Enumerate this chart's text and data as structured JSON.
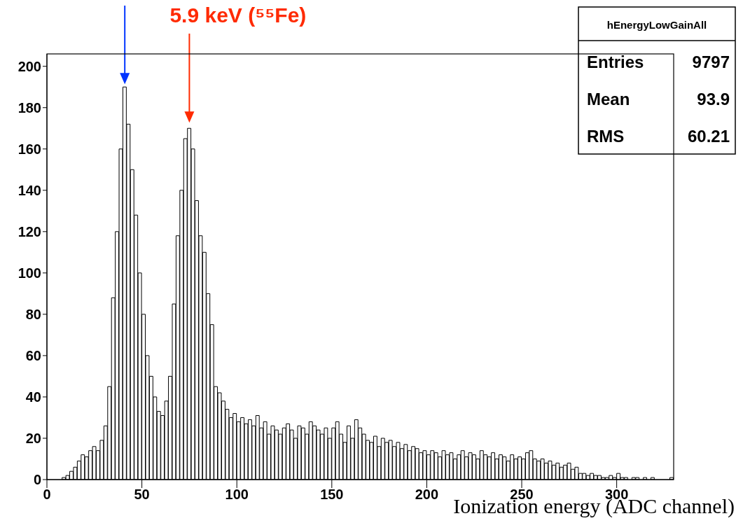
{
  "chart_data": {
    "type": "histogram",
    "xlabel": "Ionization energy (ADC  channel)",
    "bins": [
      0,
      2,
      4,
      6,
      8,
      10,
      12,
      14,
      16,
      18,
      20,
      22,
      24,
      26,
      28,
      30,
      32,
      34,
      36,
      38,
      40,
      42,
      44,
      46,
      48,
      50,
      52,
      54,
      56,
      58,
      60,
      62,
      64,
      66,
      68,
      70,
      72,
      74,
      76,
      78,
      80,
      82,
      84,
      86,
      88,
      90,
      92,
      94,
      96,
      98,
      100,
      102,
      104,
      106,
      108,
      110,
      112,
      114,
      116,
      118,
      120,
      122,
      124,
      126,
      128,
      130,
      132,
      134,
      136,
      138,
      140,
      142,
      144,
      146,
      148,
      150,
      152,
      154,
      156,
      158,
      160,
      162,
      164,
      166,
      168,
      170,
      172,
      174,
      176,
      178,
      180,
      182,
      184,
      186,
      188,
      190,
      192,
      194,
      196,
      198,
      200,
      202,
      204,
      206,
      208,
      210,
      212,
      214,
      216,
      218,
      220,
      222,
      224,
      226,
      228,
      230,
      232,
      234,
      236,
      238,
      240,
      242,
      244,
      246,
      248,
      250,
      252,
      254,
      256,
      258,
      260,
      262,
      264,
      266,
      268,
      270,
      272,
      274,
      276,
      278,
      280,
      282,
      284,
      286,
      288,
      290,
      292,
      294,
      296,
      298,
      300,
      302,
      304,
      306,
      308,
      310,
      312,
      314,
      316,
      318,
      320,
      322,
      324,
      326,
      328,
      330
    ],
    "values": [
      0,
      0,
      0,
      0,
      1,
      2,
      4,
      6,
      9,
      12,
      11,
      14,
      16,
      14,
      19,
      26,
      45,
      88,
      120,
      160,
      190,
      172,
      150,
      128,
      100,
      80,
      60,
      50,
      40,
      33,
      31,
      38,
      50,
      85,
      118,
      140,
      165,
      170,
      160,
      135,
      118,
      110,
      90,
      75,
      45,
      42,
      38,
      34,
      30,
      32,
      28,
      30,
      27,
      29,
      26,
      31,
      25,
      28,
      22,
      26,
      24,
      22,
      25,
      27,
      24,
      20,
      26,
      25,
      22,
      28,
      26,
      24,
      22,
      25,
      20,
      25,
      28,
      22,
      18,
      26,
      20,
      29,
      25,
      22,
      19,
      18,
      21,
      16,
      20,
      18,
      19,
      16,
      18,
      15,
      17,
      14,
      16,
      15,
      13,
      14,
      12,
      14,
      13,
      11,
      14,
      12,
      13,
      10,
      12,
      14,
      11,
      13,
      12,
      10,
      14,
      12,
      11,
      13,
      10,
      12,
      11,
      9,
      12,
      10,
      11,
      10,
      13,
      14,
      10,
      9,
      10,
      8,
      9,
      7,
      8,
      6,
      7,
      8,
      5,
      6,
      3,
      3,
      2,
      3,
      2,
      2,
      1,
      1,
      2,
      1,
      3,
      1,
      1,
      0,
      1,
      1,
      0,
      1,
      0,
      1,
      0,
      0,
      0,
      0,
      1
    ],
    "color": "#000000",
    "xlim": [
      0,
      330
    ],
    "xticks": [
      0,
      50,
      100,
      150,
      200,
      250,
      300
    ],
    "ylim": [
      0,
      206
    ],
    "yticks": [
      0,
      20,
      40,
      60,
      80,
      100,
      120,
      140,
      160,
      180,
      200
    ],
    "grid": false,
    "legend": false,
    "annotations": [
      "5.9 keV (⁵⁵Fe)",
      "hEnergyLowGainAll",
      "Entries 9797",
      "Mean 93.9",
      "RMS 60.21"
    ]
  }
}
